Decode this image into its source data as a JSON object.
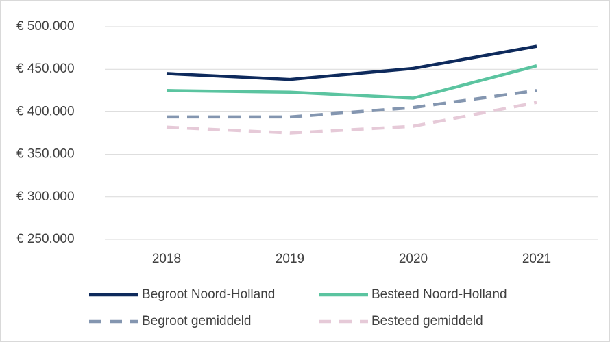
{
  "chart_data": {
    "type": "line",
    "categories": [
      "2018",
      "2019",
      "2020",
      "2021"
    ],
    "series": [
      {
        "name": "Begroot Noord-Holland",
        "color": "#0e2a5c",
        "dashed": false,
        "values": [
          445000,
          438000,
          451000,
          477000
        ]
      },
      {
        "name": "Besteed Noord-Holland",
        "color": "#5bc4a0",
        "dashed": false,
        "values": [
          425000,
          423000,
          416000,
          454000
        ]
      },
      {
        "name": "Begroot gemiddeld",
        "color": "#8496b0",
        "dashed": true,
        "values": [
          394000,
          394000,
          405000,
          425000
        ]
      },
      {
        "name": "Besteed gemiddeld",
        "color": "#e6cad8",
        "dashed": true,
        "values": [
          382000,
          375000,
          383000,
          411000
        ]
      }
    ],
    "ylim": [
      250000,
      500000
    ],
    "yticks": [
      {
        "value": 250000,
        "label": "€ 250.000"
      },
      {
        "value": 300000,
        "label": "€ 300.000"
      },
      {
        "value": 350000,
        "label": "€ 350.000"
      },
      {
        "value": 400000,
        "label": "€ 400.000"
      },
      {
        "value": 450000,
        "label": "€ 450.000"
      },
      {
        "value": 500000,
        "label": "€ 500.000"
      }
    ],
    "grid": true
  }
}
